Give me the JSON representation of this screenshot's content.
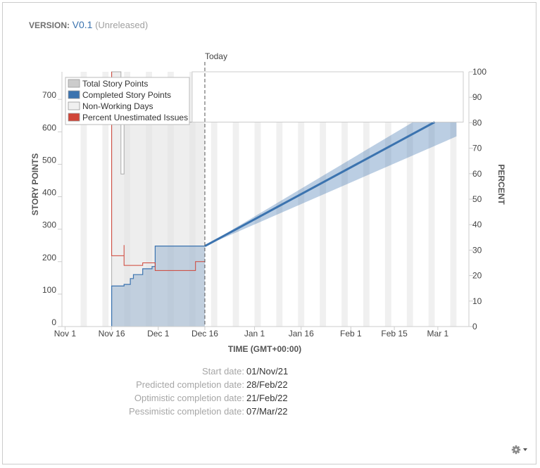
{
  "header": {
    "version_label": "VERSION:",
    "version_name": "V0.1",
    "version_status": "(Unreleased)"
  },
  "chart_data": {
    "type": "line",
    "today_label": "Today",
    "xlabel": "TIME (GMT+00:00)",
    "ylabel_left": "STORY POINTS",
    "ylabel_right": "PERCENT",
    "x_domain": [
      "2021-10-31",
      "2022-03-11"
    ],
    "today": "2021-12-16",
    "x_ticks": [
      {
        "date": "2021-11-01",
        "label": "Nov 1"
      },
      {
        "date": "2021-11-16",
        "label": "Nov 16"
      },
      {
        "date": "2021-12-01",
        "label": "Dec 1"
      },
      {
        "date": "2021-12-16",
        "label": "Dec 16"
      },
      {
        "date": "2022-01-01",
        "label": "Jan 1"
      },
      {
        "date": "2022-01-16",
        "label": "Jan 16"
      },
      {
        "date": "2022-02-01",
        "label": "Feb 1"
      },
      {
        "date": "2022-02-15",
        "label": "Feb 15"
      },
      {
        "date": "2022-03-01",
        "label": "Mar 1"
      }
    ],
    "y_left": {
      "min": 0,
      "max": 785,
      "ticks": [
        0,
        100,
        200,
        300,
        400,
        500,
        600,
        700
      ]
    },
    "y_right": {
      "min": 0,
      "max": 100,
      "ticks": [
        0,
        10,
        20,
        30,
        40,
        50,
        60,
        70,
        80,
        90,
        100
      ]
    },
    "legend": [
      {
        "label": "Total Story Points",
        "color": "#cccccc"
      },
      {
        "label": "Completed Story Points",
        "color": "#3b73af"
      },
      {
        "label": "Non-Working Days",
        "color": "#f0f0f0"
      },
      {
        "label": "Percent Unestimated Issues",
        "color": "#d04437"
      }
    ],
    "legend_position": "top-left",
    "series": [
      {
        "name": "Total Story Points",
        "color": "#cccccc",
        "points": [
          [
            "2021-11-16",
            0
          ],
          [
            "2021-11-16",
            785
          ],
          [
            "2021-11-19",
            785
          ],
          [
            "2021-11-19",
            470
          ],
          [
            "2021-11-20",
            470
          ],
          [
            "2021-11-20",
            630
          ],
          [
            "2021-12-16",
            630
          ]
        ]
      },
      {
        "name": "Completed Story Points",
        "color": "#3b73af",
        "points": [
          [
            "2021-11-16",
            0
          ],
          [
            "2021-11-16",
            125
          ],
          [
            "2021-11-20",
            125
          ],
          [
            "2021-11-20",
            130
          ],
          [
            "2021-11-22",
            130
          ],
          [
            "2021-11-22",
            148
          ],
          [
            "2021-11-23",
            148
          ],
          [
            "2021-11-23",
            160
          ],
          [
            "2021-11-26",
            160
          ],
          [
            "2021-11-26",
            178
          ],
          [
            "2021-11-29",
            178
          ],
          [
            "2021-11-29",
            185
          ],
          [
            "2021-11-30",
            185
          ],
          [
            "2021-11-30",
            248
          ],
          [
            "2021-12-16",
            248
          ]
        ]
      },
      {
        "name": "Percent Unestimated Issues",
        "color": "#d04437",
        "axis": "right",
        "points": [
          [
            "2021-11-16",
            100
          ],
          [
            "2021-11-16",
            27.8
          ],
          [
            "2021-11-20",
            27.8
          ],
          [
            "2021-11-20",
            25.5
          ],
          [
            "2021-11-20",
            32
          ],
          [
            "2021-11-20",
            24
          ],
          [
            "2021-11-26",
            24
          ],
          [
            "2021-11-26",
            25
          ],
          [
            "2021-11-30",
            25
          ],
          [
            "2021-11-30",
            22
          ],
          [
            "2021-12-13",
            22
          ],
          [
            "2021-12-13",
            25.5
          ],
          [
            "2021-12-16",
            25.5
          ]
        ]
      }
    ],
    "forecast": {
      "start": [
        "2021-12-16",
        248
      ],
      "predicted": [
        "2022-02-28",
        630
      ],
      "optimistic": [
        "2022-02-21",
        630
      ],
      "pessimistic": [
        "2022-03-07",
        630
      ],
      "target_scope": 630
    }
  },
  "dates": [
    {
      "label": "Start date:",
      "value": "01/Nov/21"
    },
    {
      "label": "Predicted completion date:",
      "value": "28/Feb/22"
    },
    {
      "label": "Optimistic completion date:",
      "value": "21/Feb/22"
    },
    {
      "label": "Pessimistic completion date:",
      "value": "07/Mar/22"
    }
  ],
  "icons": {
    "settings": "gear-icon",
    "dropdown": "caret-down-icon"
  }
}
